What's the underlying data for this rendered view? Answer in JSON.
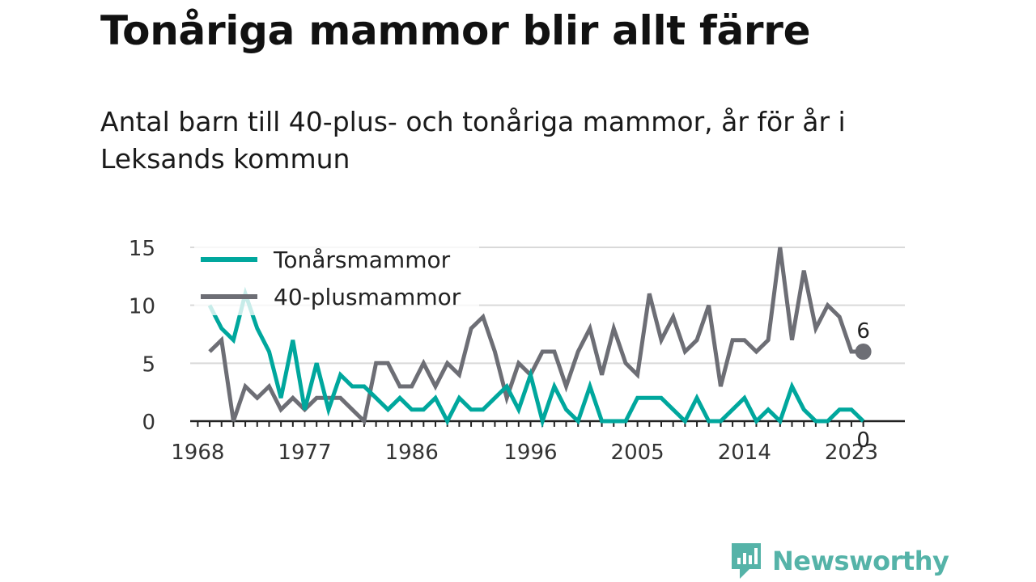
{
  "title": "Tonåriga mammor blir allt färre",
  "subtitle": "Antal barn till 40-plus- och tonåriga mammor, år för år i Leksands kommun",
  "brand": {
    "name": "Newsworthy"
  },
  "colors": {
    "teal": "#00a79d",
    "gray": "#6d6e75",
    "grid": "#d9d9d9",
    "brand": "#55b3a8"
  },
  "chart_data": {
    "type": "line",
    "x": [
      1969,
      1970,
      1971,
      1972,
      1973,
      1974,
      1975,
      1976,
      1977,
      1978,
      1979,
      1980,
      1981,
      1982,
      1983,
      1984,
      1985,
      1986,
      1987,
      1988,
      1989,
      1990,
      1991,
      1992,
      1993,
      1994,
      1995,
      1996,
      1997,
      1998,
      1999,
      2000,
      2001,
      2002,
      2003,
      2004,
      2005,
      2006,
      2007,
      2008,
      2009,
      2010,
      2011,
      2012,
      2013,
      2014,
      2015,
      2016,
      2017,
      2018,
      2019,
      2020,
      2021,
      2022,
      2023,
      2024
    ],
    "series": [
      {
        "name": "Tonårsmammor",
        "color": "#00a79d",
        "values": [
          10,
          8,
          7,
          11,
          8,
          6,
          2,
          7,
          1,
          5,
          1,
          4,
          3,
          3,
          2,
          1,
          2,
          1,
          1,
          2,
          0,
          2,
          1,
          1,
          2,
          3,
          1,
          4,
          0,
          3,
          1,
          0,
          3,
          0,
          0,
          0,
          2,
          2,
          2,
          1,
          0,
          2,
          0,
          0,
          1,
          2,
          0,
          1,
          0,
          3,
          1,
          0,
          0,
          1,
          1,
          0
        ]
      },
      {
        "name": "40-plusmammor",
        "color": "#6d6e75",
        "values": [
          6,
          7,
          0,
          3,
          2,
          3,
          1,
          2,
          1,
          2,
          2,
          2,
          1,
          0,
          5,
          5,
          3,
          3,
          5,
          3,
          5,
          4,
          8,
          9,
          6,
          2,
          5,
          4,
          6,
          6,
          3,
          6,
          8,
          4,
          8,
          5,
          4,
          11,
          7,
          9,
          6,
          7,
          10,
          3,
          7,
          7,
          6,
          7,
          15,
          7,
          13,
          8,
          10,
          9,
          6,
          6
        ]
      }
    ],
    "ylim": [
      0,
      15
    ],
    "yticks": [
      "0",
      "5",
      "10",
      "15"
    ],
    "xticks": [
      {
        "value": 1968,
        "label": "1968"
      },
      {
        "value": 1977,
        "label": "1977"
      },
      {
        "value": 1986,
        "label": "1986"
      },
      {
        "value": 1996,
        "label": "1996"
      },
      {
        "value": 2005,
        "label": "2005"
      },
      {
        "value": 2014,
        "label": "2014"
      },
      {
        "value": 2023,
        "label": "2023"
      }
    ],
    "end_labels": [
      {
        "series": "40-plusmammor",
        "text": "6"
      },
      {
        "series": "Tonårsmammor",
        "text": "0"
      }
    ],
    "legend": "top-left",
    "grid": true
  }
}
